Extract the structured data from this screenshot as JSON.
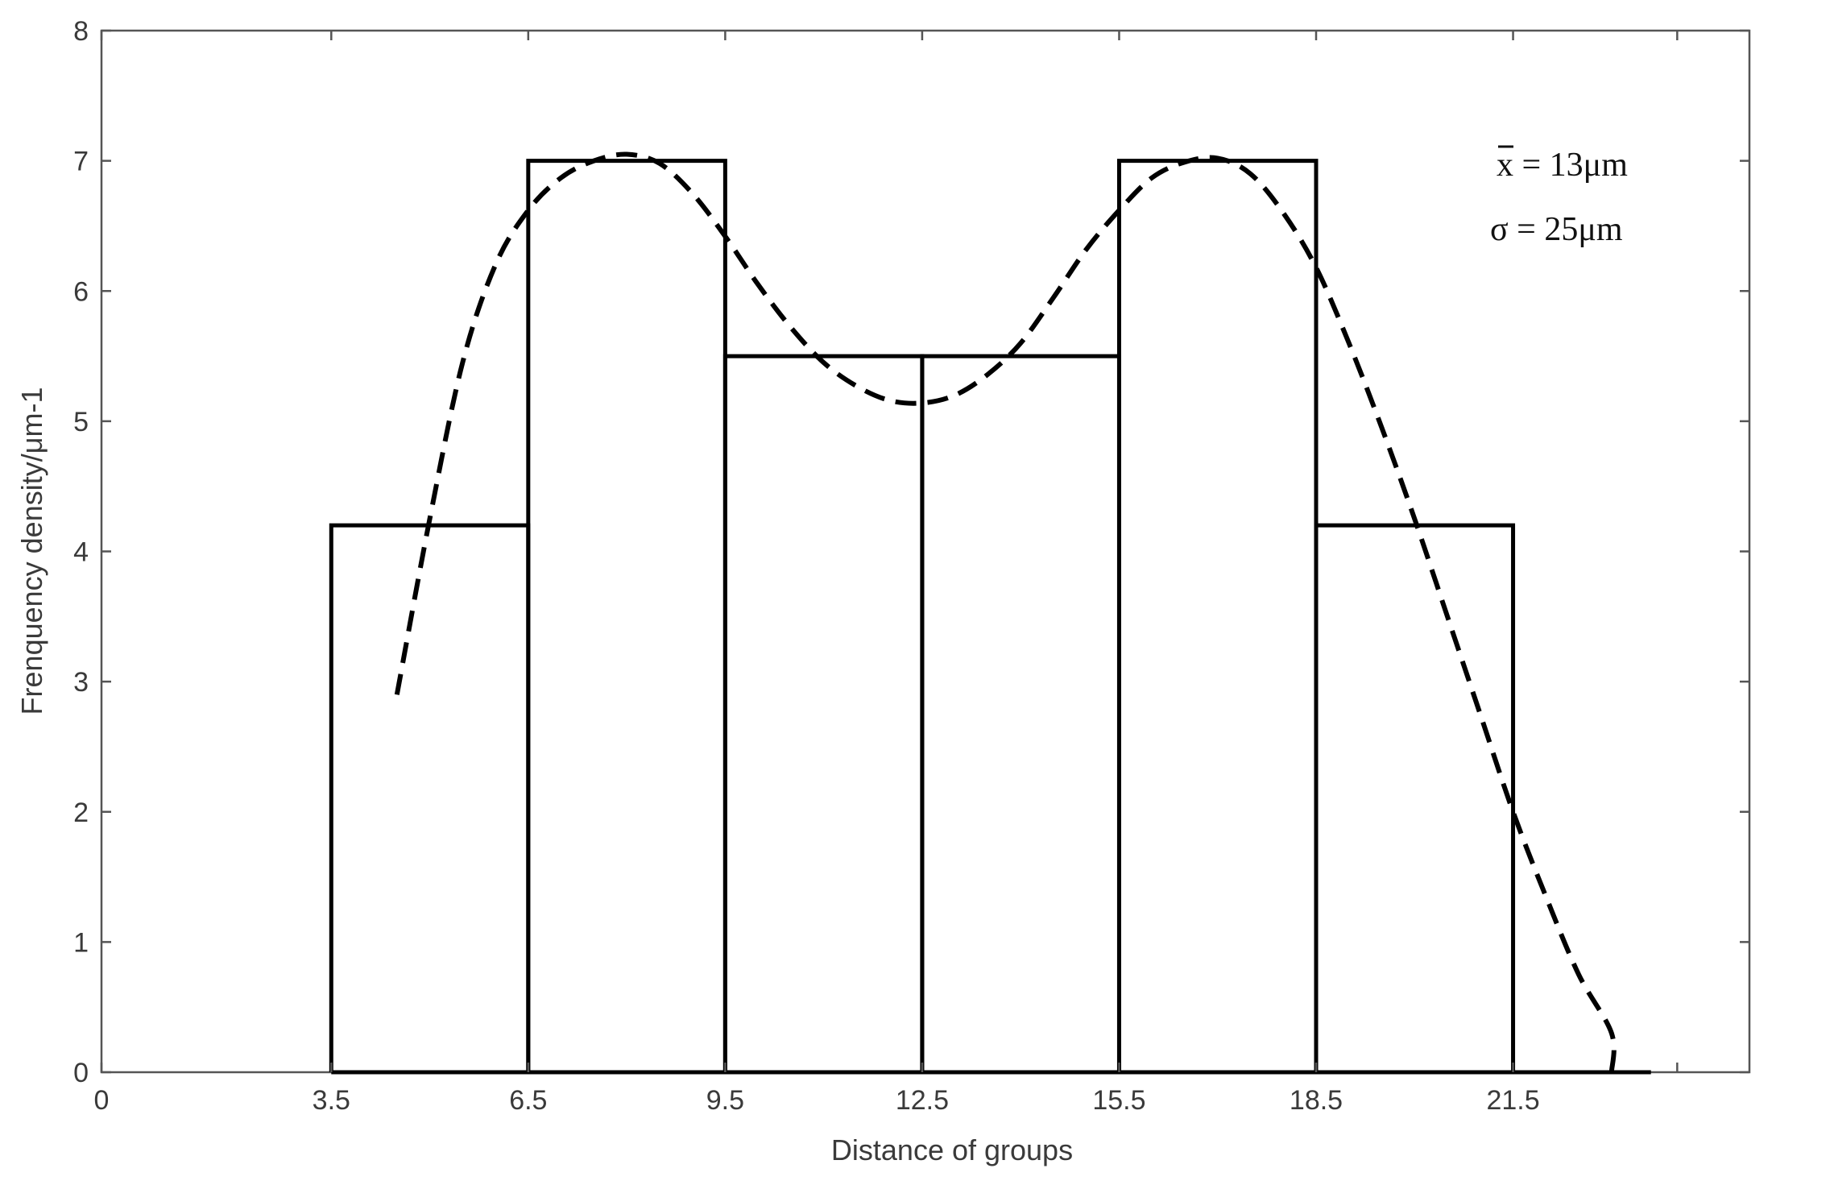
{
  "chart_data": {
    "type": "bar",
    "xlabel": "Distance of groups",
    "ylabel": "Frenquency density/μm-1",
    "xlim": [
      0,
      25.1
    ],
    "ylim": [
      0,
      8
    ],
    "x_tick_values": [
      0,
      3.5,
      6.5,
      9.5,
      12.5,
      15.5,
      18.5,
      21.5
    ],
    "x_tick_labels": [
      "0",
      "3.5",
      "6.5",
      "9.5",
      "12.5",
      "15.5",
      "18.5",
      "21.5"
    ],
    "y_tick_values": [
      0,
      1,
      2,
      3,
      4,
      5,
      6,
      7,
      8
    ],
    "y_tick_labels": [
      "0",
      "1",
      "2",
      "3",
      "4",
      "5",
      "6",
      "7",
      "8"
    ],
    "grid": false,
    "bins": [
      {
        "x0": 3.5,
        "x1": 6.5,
        "value": 4.2
      },
      {
        "x0": 6.5,
        "x1": 9.5,
        "value": 7.0
      },
      {
        "x0": 9.5,
        "x1": 12.5,
        "value": 5.5
      },
      {
        "x0": 12.5,
        "x1": 15.5,
        "value": 5.5
      },
      {
        "x0": 15.5,
        "x1": 18.5,
        "value": 7.0
      },
      {
        "x0": 18.5,
        "x1": 21.5,
        "value": 4.2
      }
    ],
    "baseline_end_x": 23.6,
    "fit_curve": {
      "style": "dashed",
      "x": [
        4.5,
        5.0,
        5.5,
        6.0,
        6.5,
        7.0,
        7.5,
        8.0,
        8.5,
        9.0,
        9.5,
        10.0,
        10.5,
        11.0,
        11.5,
        12.0,
        12.5,
        13.0,
        13.5,
        14.0,
        14.5,
        15.0,
        15.5,
        16.0,
        16.5,
        17.0,
        17.5,
        18.0,
        18.5,
        19.0,
        19.5,
        20.0,
        20.5,
        21.0,
        21.5,
        22.0,
        22.5,
        23.0
      ],
      "y": [
        2.9,
        4.25,
        5.45,
        6.2,
        6.62,
        6.87,
        7.0,
        7.05,
        6.98,
        6.75,
        6.42,
        6.05,
        5.72,
        5.45,
        5.27,
        5.16,
        5.14,
        5.2,
        5.36,
        5.6,
        5.95,
        6.32,
        6.62,
        6.87,
        6.99,
        7.02,
        6.9,
        6.6,
        6.18,
        5.6,
        4.95,
        4.25,
        3.5,
        2.75,
        2.0,
        1.35,
        0.75,
        0.3
      ]
    },
    "curve_end": {
      "x": 23.0,
      "y": 0.0
    },
    "annotations": [
      {
        "id": "mean",
        "text": "x = 13μm",
        "overline_first_char": true
      },
      {
        "id": "sigma",
        "text": "σ = 25μm"
      }
    ]
  }
}
